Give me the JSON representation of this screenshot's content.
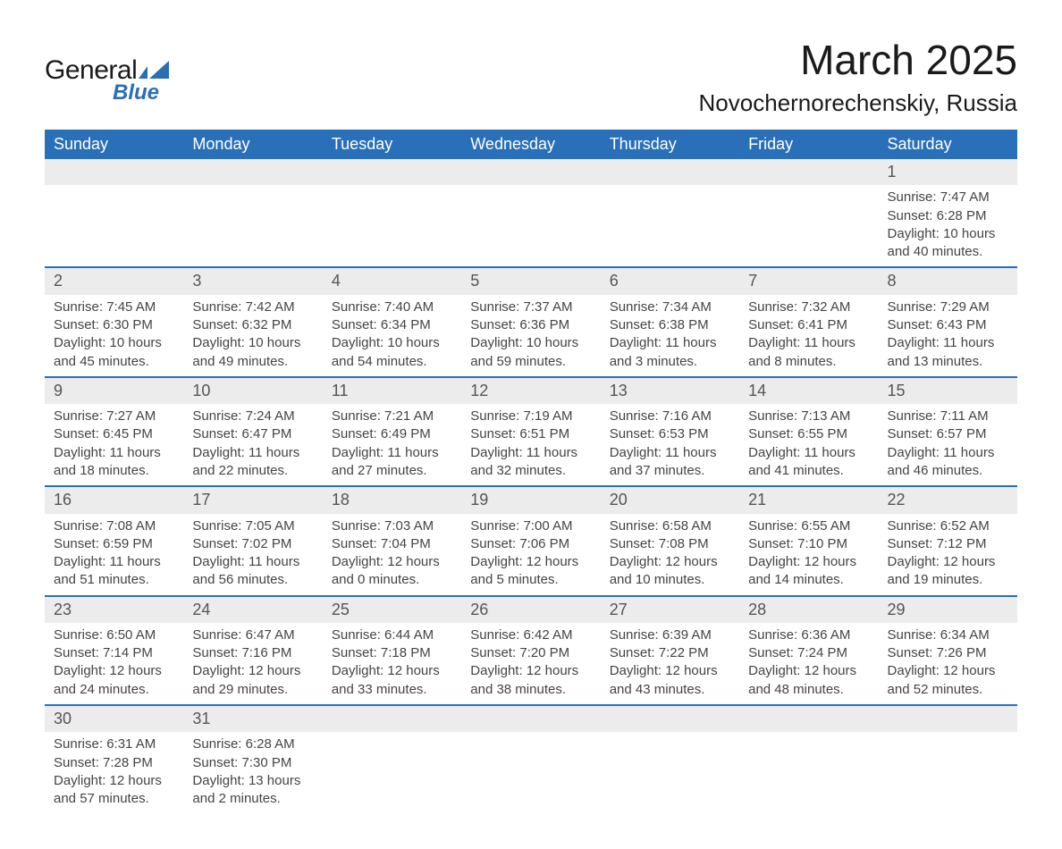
{
  "brand": {
    "word1": "General",
    "word2": "Blue"
  },
  "title": "March 2025",
  "subtitle": "Novochernorechenskiy, Russia",
  "colors": {
    "header_bg": "#2a70b8",
    "header_text": "#ffffff",
    "row_border": "#2a70b8",
    "daynum_bg": "#ececec",
    "daynum_text": "#555555",
    "body_text": "#444444",
    "brand_blue": "#2a6fb3",
    "page_bg": "#ffffff"
  },
  "weekdays": [
    "Sunday",
    "Monday",
    "Tuesday",
    "Wednesday",
    "Thursday",
    "Friday",
    "Saturday"
  ],
  "weeks": [
    [
      null,
      null,
      null,
      null,
      null,
      null,
      {
        "n": "1",
        "sr": "7:47 AM",
        "ss": "6:28 PM",
        "dl": "10 hours and 40 minutes."
      }
    ],
    [
      {
        "n": "2",
        "sr": "7:45 AM",
        "ss": "6:30 PM",
        "dl": "10 hours and 45 minutes."
      },
      {
        "n": "3",
        "sr": "7:42 AM",
        "ss": "6:32 PM",
        "dl": "10 hours and 49 minutes."
      },
      {
        "n": "4",
        "sr": "7:40 AM",
        "ss": "6:34 PM",
        "dl": "10 hours and 54 minutes."
      },
      {
        "n": "5",
        "sr": "7:37 AM",
        "ss": "6:36 PM",
        "dl": "10 hours and 59 minutes."
      },
      {
        "n": "6",
        "sr": "7:34 AM",
        "ss": "6:38 PM",
        "dl": "11 hours and 3 minutes."
      },
      {
        "n": "7",
        "sr": "7:32 AM",
        "ss": "6:41 PM",
        "dl": "11 hours and 8 minutes."
      },
      {
        "n": "8",
        "sr": "7:29 AM",
        "ss": "6:43 PM",
        "dl": "11 hours and 13 minutes."
      }
    ],
    [
      {
        "n": "9",
        "sr": "7:27 AM",
        "ss": "6:45 PM",
        "dl": "11 hours and 18 minutes."
      },
      {
        "n": "10",
        "sr": "7:24 AM",
        "ss": "6:47 PM",
        "dl": "11 hours and 22 minutes."
      },
      {
        "n": "11",
        "sr": "7:21 AM",
        "ss": "6:49 PM",
        "dl": "11 hours and 27 minutes."
      },
      {
        "n": "12",
        "sr": "7:19 AM",
        "ss": "6:51 PM",
        "dl": "11 hours and 32 minutes."
      },
      {
        "n": "13",
        "sr": "7:16 AM",
        "ss": "6:53 PM",
        "dl": "11 hours and 37 minutes."
      },
      {
        "n": "14",
        "sr": "7:13 AM",
        "ss": "6:55 PM",
        "dl": "11 hours and 41 minutes."
      },
      {
        "n": "15",
        "sr": "7:11 AM",
        "ss": "6:57 PM",
        "dl": "11 hours and 46 minutes."
      }
    ],
    [
      {
        "n": "16",
        "sr": "7:08 AM",
        "ss": "6:59 PM",
        "dl": "11 hours and 51 minutes."
      },
      {
        "n": "17",
        "sr": "7:05 AM",
        "ss": "7:02 PM",
        "dl": "11 hours and 56 minutes."
      },
      {
        "n": "18",
        "sr": "7:03 AM",
        "ss": "7:04 PM",
        "dl": "12 hours and 0 minutes."
      },
      {
        "n": "19",
        "sr": "7:00 AM",
        "ss": "7:06 PM",
        "dl": "12 hours and 5 minutes."
      },
      {
        "n": "20",
        "sr": "6:58 AM",
        "ss": "7:08 PM",
        "dl": "12 hours and 10 minutes."
      },
      {
        "n": "21",
        "sr": "6:55 AM",
        "ss": "7:10 PM",
        "dl": "12 hours and 14 minutes."
      },
      {
        "n": "22",
        "sr": "6:52 AM",
        "ss": "7:12 PM",
        "dl": "12 hours and 19 minutes."
      }
    ],
    [
      {
        "n": "23",
        "sr": "6:50 AM",
        "ss": "7:14 PM",
        "dl": "12 hours and 24 minutes."
      },
      {
        "n": "24",
        "sr": "6:47 AM",
        "ss": "7:16 PM",
        "dl": "12 hours and 29 minutes."
      },
      {
        "n": "25",
        "sr": "6:44 AM",
        "ss": "7:18 PM",
        "dl": "12 hours and 33 minutes."
      },
      {
        "n": "26",
        "sr": "6:42 AM",
        "ss": "7:20 PM",
        "dl": "12 hours and 38 minutes."
      },
      {
        "n": "27",
        "sr": "6:39 AM",
        "ss": "7:22 PM",
        "dl": "12 hours and 43 minutes."
      },
      {
        "n": "28",
        "sr": "6:36 AM",
        "ss": "7:24 PM",
        "dl": "12 hours and 48 minutes."
      },
      {
        "n": "29",
        "sr": "6:34 AM",
        "ss": "7:26 PM",
        "dl": "12 hours and 52 minutes."
      }
    ],
    [
      {
        "n": "30",
        "sr": "6:31 AM",
        "ss": "7:28 PM",
        "dl": "12 hours and 57 minutes."
      },
      {
        "n": "31",
        "sr": "6:28 AM",
        "ss": "7:30 PM",
        "dl": "13 hours and 2 minutes."
      },
      null,
      null,
      null,
      null,
      null
    ]
  ],
  "labels": {
    "sunrise": "Sunrise: ",
    "sunset": "Sunset: ",
    "daylight": "Daylight: "
  }
}
